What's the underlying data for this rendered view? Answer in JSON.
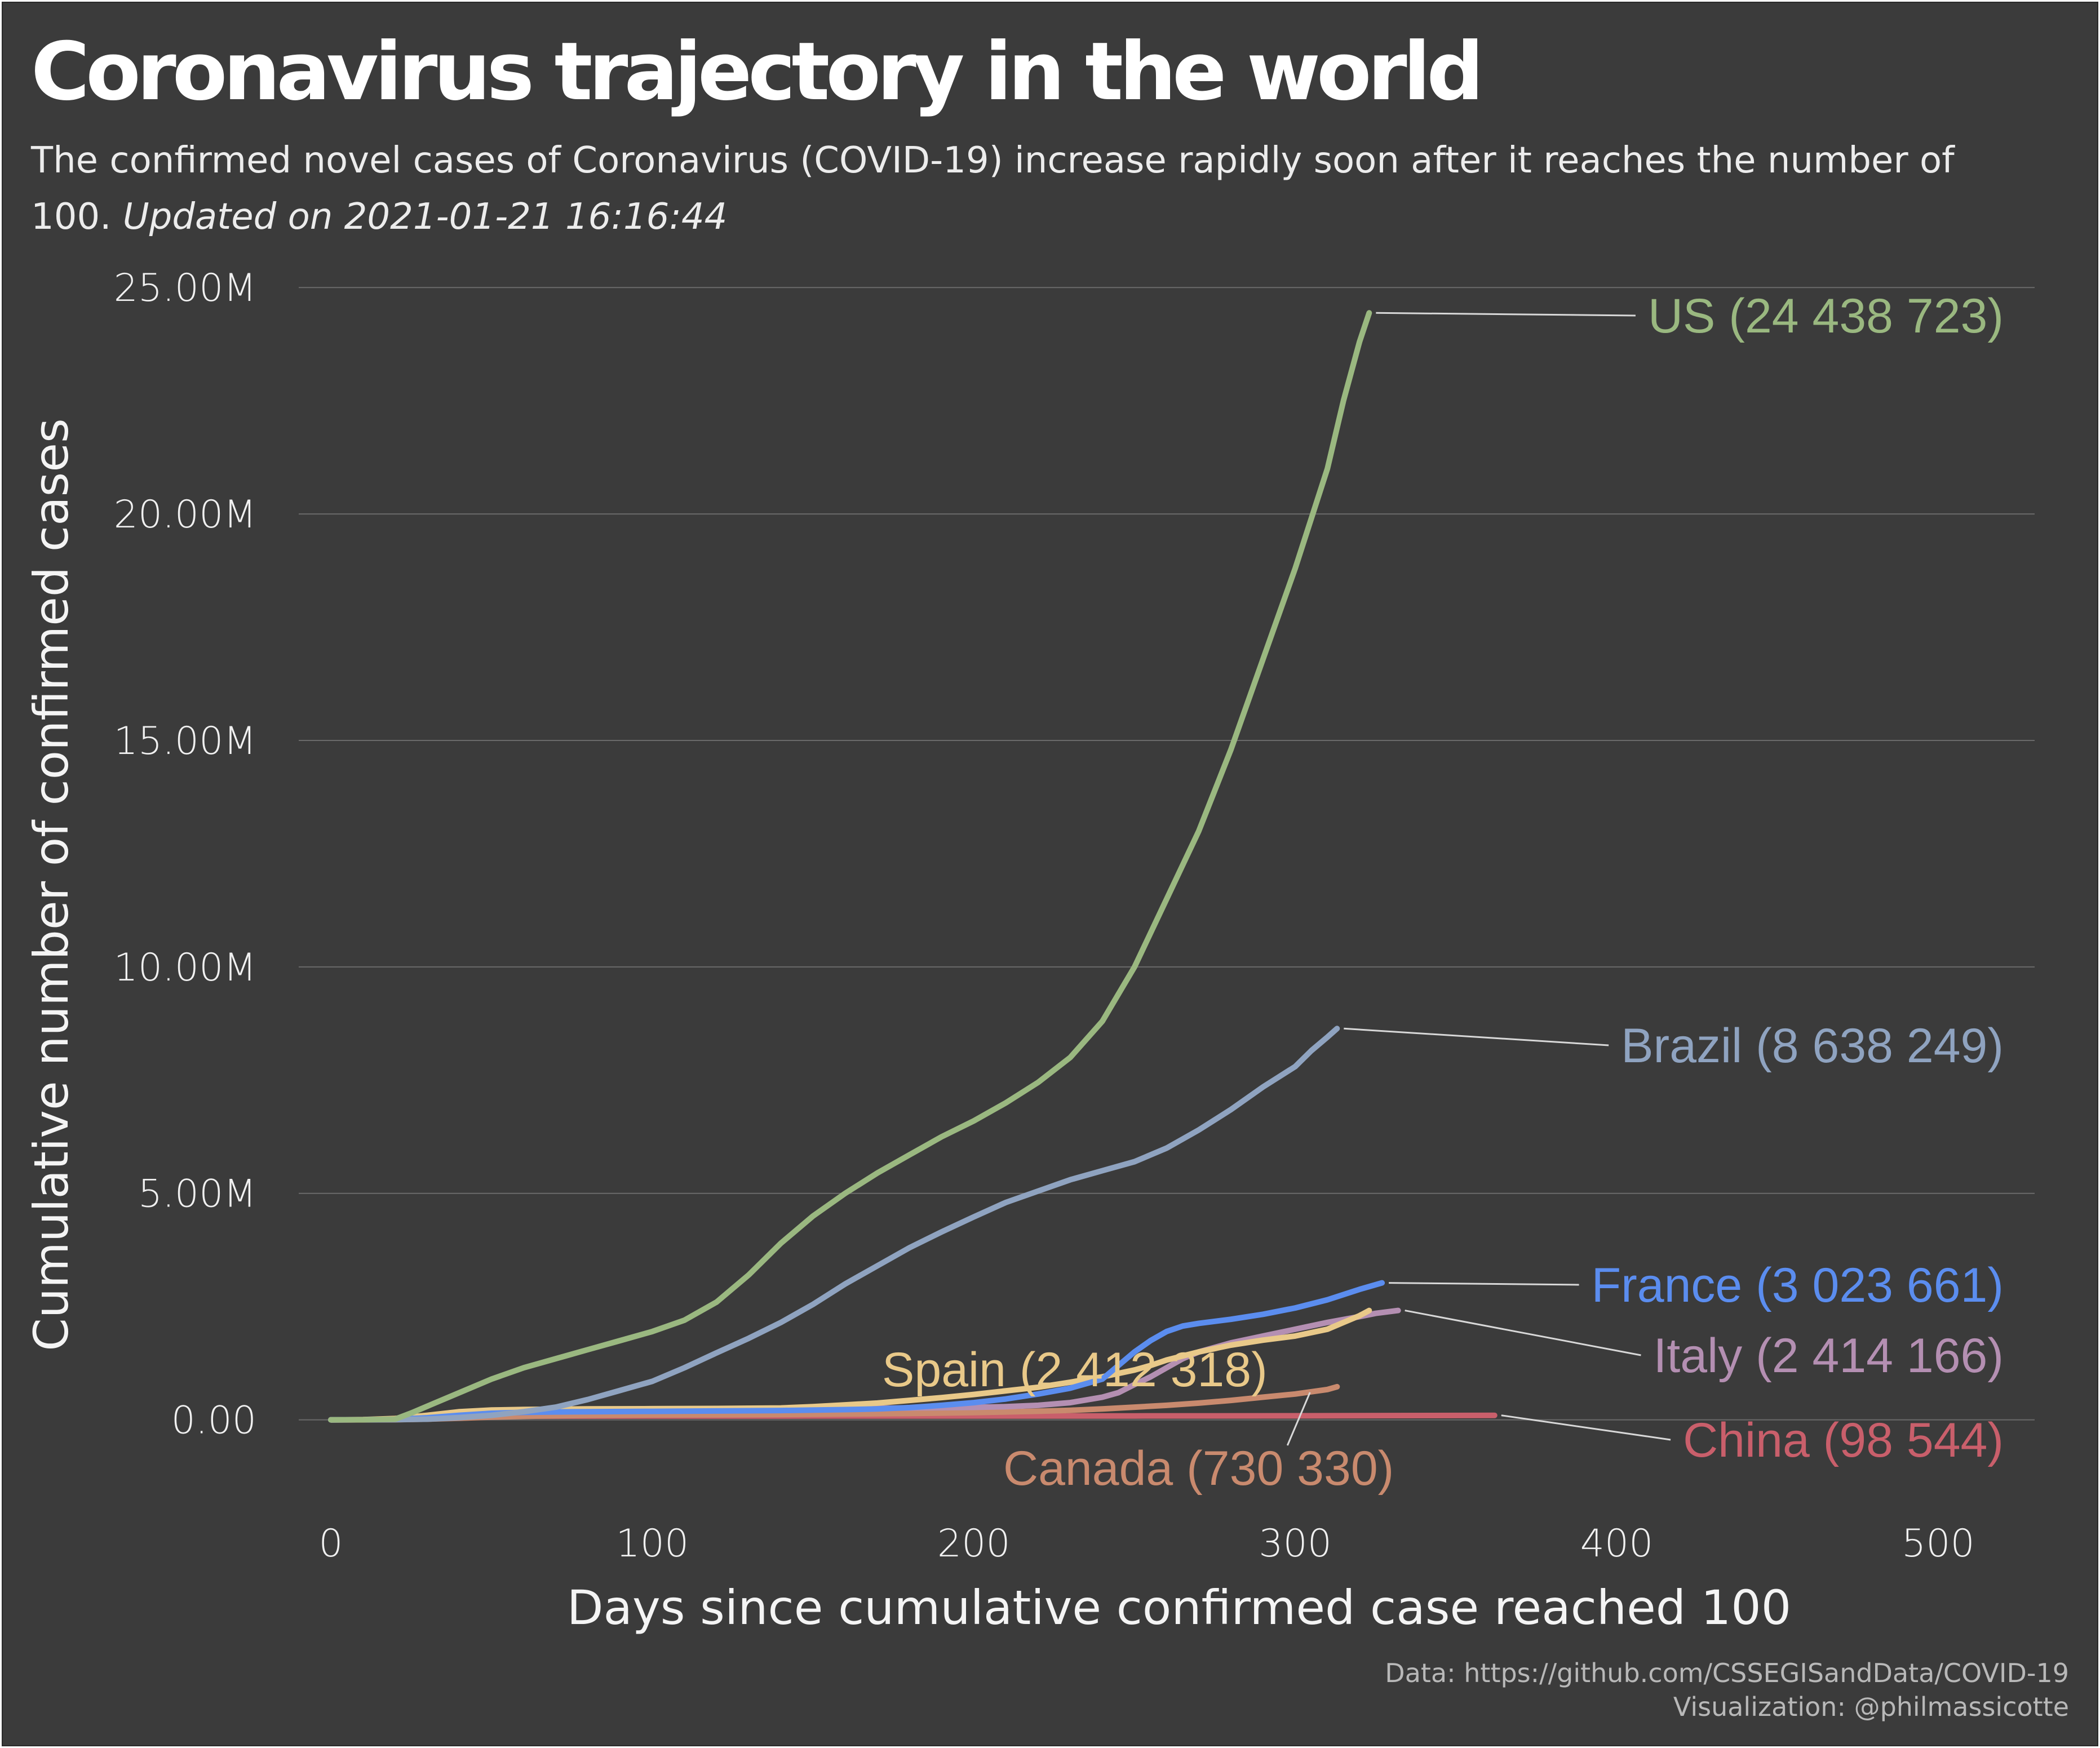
{
  "title": "Coronavirus trajectory in the world",
  "subtitle": "The confirmed novel cases of Coronavirus (COVID-19) increase rapidly soon after it reaches the number of 100.",
  "updated": "Updated on 2021-01-21 16:16:44",
  "caption": {
    "data_source": "Data: https://github.com/CSSEGISandData/COVID-19",
    "visualization": "Visualization: @philmassicotte"
  },
  "colors": {
    "background": "#3b3b3b",
    "gridline": "#6a6a6a",
    "leader_line": "#d8d8d8"
  },
  "chart_data": {
    "type": "line",
    "xlabel": "Days since cumulative confirmed case reached 100",
    "ylabel": "Cumulative number of confirmed cases",
    "xlim": [
      -10,
      530
    ],
    "ylim": [
      -1000000,
      25500000
    ],
    "x_ticks": [
      0,
      100,
      200,
      300,
      400,
      500
    ],
    "y_ticks": [
      0,
      5000000,
      10000000,
      15000000,
      20000000,
      25000000
    ],
    "y_tick_labels": [
      "0.00",
      "5.00M",
      "10.00M",
      "15.00M",
      "20.00M",
      "25.00M"
    ],
    "grid": "horizontal",
    "series": [
      {
        "name": "China",
        "label": "China (98 544)",
        "color": "#c95f6b",
        "points": [
          [
            0,
            100
          ],
          [
            5,
            500
          ],
          [
            10,
            2000
          ],
          [
            15,
            9000
          ],
          [
            20,
            28000
          ],
          [
            25,
            45000
          ],
          [
            30,
            67000
          ],
          [
            35,
            75000
          ],
          [
            40,
            78000
          ],
          [
            50,
            80500
          ],
          [
            60,
            81500
          ],
          [
            80,
            82500
          ],
          [
            100,
            84000
          ],
          [
            150,
            84500
          ],
          [
            200,
            85500
          ],
          [
            250,
            86500
          ],
          [
            300,
            89000
          ],
          [
            330,
            94000
          ],
          [
            362,
            98544
          ]
        ]
      },
      {
        "name": "Canada",
        "label": "Canada (730 330)",
        "color": "#c98a6e",
        "points": [
          [
            0,
            100
          ],
          [
            10,
            600
          ],
          [
            20,
            3000
          ],
          [
            30,
            15000
          ],
          [
            40,
            35000
          ],
          [
            50,
            60000
          ],
          [
            60,
            78000
          ],
          [
            70,
            90000
          ],
          [
            80,
            100000
          ],
          [
            100,
            108000
          ],
          [
            120,
            112000
          ],
          [
            140,
            118000
          ],
          [
            160,
            128000
          ],
          [
            180,
            140000
          ],
          [
            200,
            160000
          ],
          [
            210,
            175000
          ],
          [
            220,
            190000
          ],
          [
            230,
            210000
          ],
          [
            240,
            240000
          ],
          [
            250,
            280000
          ],
          [
            260,
            320000
          ],
          [
            270,
            370000
          ],
          [
            280,
            430000
          ],
          [
            290,
            500000
          ],
          [
            300,
            570000
          ],
          [
            305,
            620000
          ],
          [
            310,
            670000
          ],
          [
            313,
            730330
          ]
        ]
      },
      {
        "name": "Italy",
        "label": "Italy (2 414 166)",
        "color": "#b48fb2",
        "points": [
          [
            0,
            100
          ],
          [
            10,
            3000
          ],
          [
            20,
            20000
          ],
          [
            30,
            80000
          ],
          [
            40,
            150000
          ],
          [
            50,
            190000
          ],
          [
            60,
            210000
          ],
          [
            70,
            220000
          ],
          [
            80,
            230000
          ],
          [
            100,
            236000
          ],
          [
            120,
            242000
          ],
          [
            140,
            248000
          ],
          [
            160,
            255000
          ],
          [
            180,
            262000
          ],
          [
            200,
            275000
          ],
          [
            210,
            290000
          ],
          [
            220,
            320000
          ],
          [
            230,
            380000
          ],
          [
            240,
            500000
          ],
          [
            245,
            600000
          ],
          [
            250,
            780000
          ],
          [
            255,
            950000
          ],
          [
            260,
            1150000
          ],
          [
            265,
            1350000
          ],
          [
            270,
            1500000
          ],
          [
            280,
            1700000
          ],
          [
            290,
            1850000
          ],
          [
            300,
            2000000
          ],
          [
            310,
            2150000
          ],
          [
            320,
            2280000
          ],
          [
            325,
            2350000
          ],
          [
            332,
            2414166
          ]
        ]
      },
      {
        "name": "Spain",
        "label": "Spain (2 412 318)",
        "color": "#e9c989",
        "points": [
          [
            0,
            100
          ],
          [
            10,
            3500
          ],
          [
            20,
            30000
          ],
          [
            30,
            100000
          ],
          [
            40,
            180000
          ],
          [
            50,
            215000
          ],
          [
            60,
            228000
          ],
          [
            70,
            235000
          ],
          [
            80,
            240000
          ],
          [
            100,
            245000
          ],
          [
            120,
            250000
          ],
          [
            140,
            262000
          ],
          [
            150,
            290000
          ],
          [
            160,
            330000
          ],
          [
            170,
            370000
          ],
          [
            180,
            430000
          ],
          [
            190,
            490000
          ],
          [
            200,
            560000
          ],
          [
            210,
            640000
          ],
          [
            220,
            720000
          ],
          [
            230,
            830000
          ],
          [
            240,
            950000
          ],
          [
            250,
            1100000
          ],
          [
            255,
            1200000
          ],
          [
            260,
            1320000
          ],
          [
            270,
            1500000
          ],
          [
            280,
            1650000
          ],
          [
            290,
            1760000
          ],
          [
            300,
            1850000
          ],
          [
            310,
            2000000
          ],
          [
            315,
            2150000
          ],
          [
            320,
            2300000
          ],
          [
            323,
            2412318
          ]
        ]
      },
      {
        "name": "France",
        "label": "France (3 023 661)",
        "color": "#5b8def",
        "points": [
          [
            0,
            100
          ],
          [
            10,
            2000
          ],
          [
            20,
            10000
          ],
          [
            30,
            45000
          ],
          [
            40,
            100000
          ],
          [
            50,
            145000
          ],
          [
            60,
            165000
          ],
          [
            70,
            175000
          ],
          [
            80,
            180000
          ],
          [
            100,
            187000
          ],
          [
            120,
            195000
          ],
          [
            140,
            205000
          ],
          [
            160,
            225000
          ],
          [
            170,
            240000
          ],
          [
            180,
            270000
          ],
          [
            190,
            320000
          ],
          [
            200,
            380000
          ],
          [
            210,
            460000
          ],
          [
            220,
            570000
          ],
          [
            230,
            700000
          ],
          [
            240,
            900000
          ],
          [
            245,
            1200000
          ],
          [
            250,
            1500000
          ],
          [
            255,
            1750000
          ],
          [
            260,
            1950000
          ],
          [
            265,
            2070000
          ],
          [
            270,
            2130000
          ],
          [
            280,
            2220000
          ],
          [
            290,
            2330000
          ],
          [
            300,
            2470000
          ],
          [
            310,
            2650000
          ],
          [
            320,
            2880000
          ],
          [
            327,
            3023661
          ]
        ]
      },
      {
        "name": "Brazil",
        "label": "Brazil (8 638 249)",
        "color": "#8fa3c0",
        "points": [
          [
            0,
            100
          ],
          [
            10,
            1000
          ],
          [
            20,
            4000
          ],
          [
            30,
            15000
          ],
          [
            40,
            50000
          ],
          [
            50,
            100000
          ],
          [
            60,
            180000
          ],
          [
            70,
            280000
          ],
          [
            80,
            450000
          ],
          [
            90,
            650000
          ],
          [
            100,
            850000
          ],
          [
            110,
            1150000
          ],
          [
            120,
            1480000
          ],
          [
            130,
            1800000
          ],
          [
            140,
            2150000
          ],
          [
            150,
            2550000
          ],
          [
            160,
            3000000
          ],
          [
            170,
            3400000
          ],
          [
            180,
            3800000
          ],
          [
            190,
            4150000
          ],
          [
            200,
            4480000
          ],
          [
            210,
            4800000
          ],
          [
            220,
            5050000
          ],
          [
            230,
            5300000
          ],
          [
            240,
            5500000
          ],
          [
            250,
            5700000
          ],
          [
            260,
            6000000
          ],
          [
            270,
            6400000
          ],
          [
            280,
            6850000
          ],
          [
            290,
            7350000
          ],
          [
            300,
            7800000
          ],
          [
            305,
            8150000
          ],
          [
            310,
            8450000
          ],
          [
            313,
            8638249
          ]
        ]
      },
      {
        "name": "US",
        "label": "US (24 438 723)",
        "color": "#9ab880",
        "points": [
          [
            0,
            100
          ],
          [
            10,
            1500
          ],
          [
            20,
            15000
          ],
          [
            25,
            150000
          ],
          [
            30,
            300000
          ],
          [
            40,
            600000
          ],
          [
            50,
            900000
          ],
          [
            60,
            1150000
          ],
          [
            70,
            1350000
          ],
          [
            80,
            1550000
          ],
          [
            90,
            1750000
          ],
          [
            100,
            1950000
          ],
          [
            110,
            2200000
          ],
          [
            120,
            2600000
          ],
          [
            130,
            3200000
          ],
          [
            140,
            3900000
          ],
          [
            150,
            4500000
          ],
          [
            160,
            5000000
          ],
          [
            170,
            5450000
          ],
          [
            180,
            5850000
          ],
          [
            190,
            6250000
          ],
          [
            200,
            6600000
          ],
          [
            210,
            7000000
          ],
          [
            220,
            7450000
          ],
          [
            230,
            8000000
          ],
          [
            240,
            8800000
          ],
          [
            250,
            10000000
          ],
          [
            260,
            11500000
          ],
          [
            270,
            13000000
          ],
          [
            280,
            14800000
          ],
          [
            290,
            16800000
          ],
          [
            300,
            18800000
          ],
          [
            310,
            21000000
          ],
          [
            315,
            22500000
          ],
          [
            320,
            23800000
          ],
          [
            323,
            24438723
          ]
        ]
      }
    ]
  }
}
